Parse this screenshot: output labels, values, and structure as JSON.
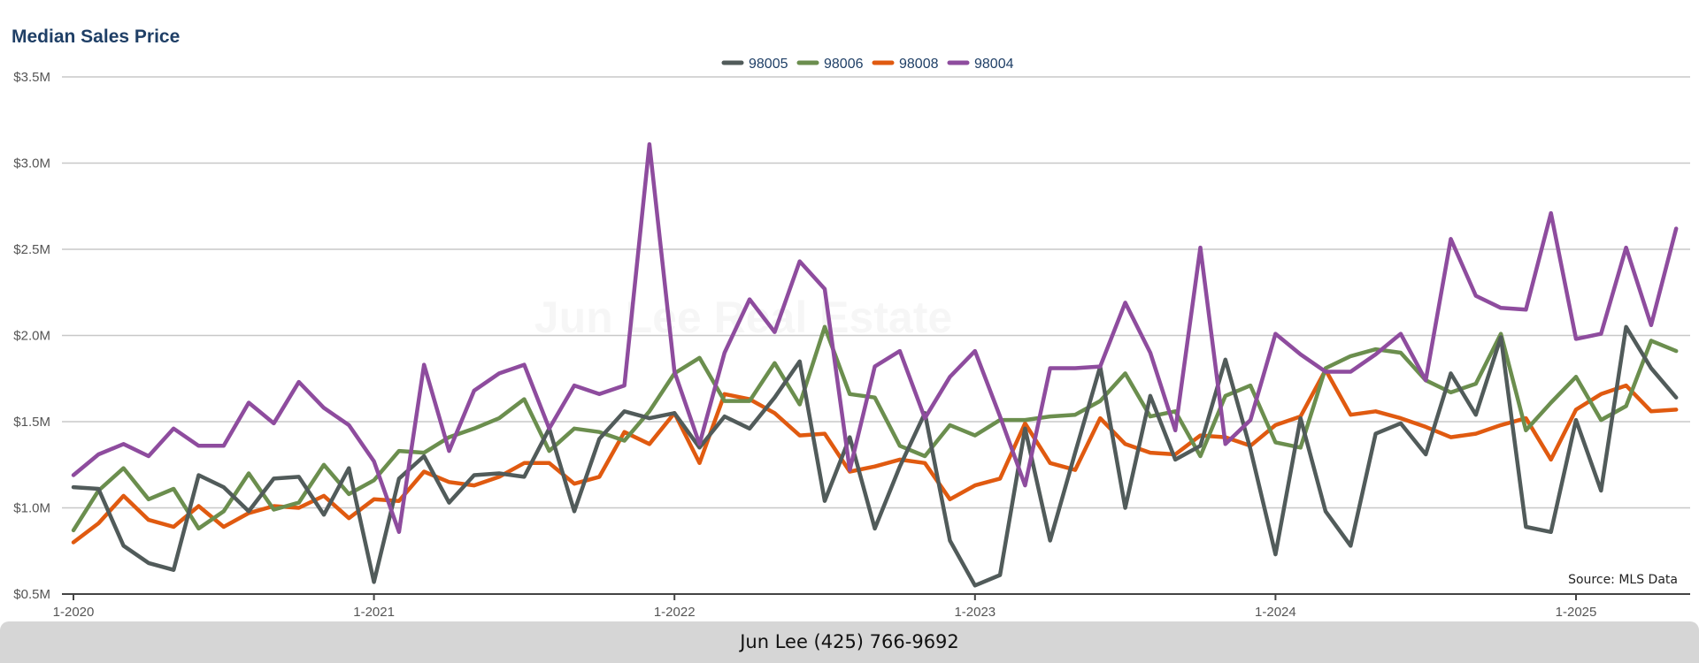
{
  "footer": {
    "contact": "Jun Lee (425) 766-9692"
  },
  "watermark": "Jun Lee Real Estate",
  "colors": {
    "background": "#ffffff",
    "grid": "#c8c8c8",
    "axis": "#555555",
    "title": "#1f3f66",
    "footer_bg": "#d6d6d6"
  },
  "chart_data": {
    "type": "line",
    "title": "Median Sales Price",
    "xlabel": "",
    "ylabel": "",
    "source": "Source: MLS Data",
    "legend_position": "top-center",
    "grid": true,
    "ylim": [
      0.5,
      3.5
    ],
    "y_ticks": [
      0.5,
      1.0,
      1.5,
      2.0,
      2.5,
      3.0,
      3.5
    ],
    "y_tick_labels": [
      "$0.5M",
      "$1.0M",
      "$1.5M",
      "$2.0M",
      "$2.5M",
      "$3.0M",
      "$3.5M"
    ],
    "x_ticks": [
      "1-2020",
      "1-2021",
      "1-2022",
      "1-2023",
      "1-2024",
      "1-2025"
    ],
    "x_start": "1-2020",
    "x_end": "5-2025",
    "series": [
      {
        "name": "98005",
        "color": "#515b5a",
        "values": [
          1.12,
          1.11,
          0.78,
          0.68,
          0.64,
          1.19,
          1.12,
          0.98,
          1.17,
          1.18,
          0.96,
          1.23,
          0.57,
          1.17,
          1.3,
          1.03,
          1.19,
          1.2,
          1.18,
          1.46,
          0.98,
          1.4,
          1.56,
          1.52,
          1.55,
          1.35,
          1.53,
          1.46,
          1.64,
          1.85,
          1.04,
          1.41,
          0.88,
          1.24,
          1.55,
          0.81,
          0.55,
          0.61,
          1.46,
          0.81,
          1.32,
          1.82,
          1.0,
          1.65,
          1.28,
          1.36,
          1.86,
          1.34,
          0.73,
          1.52,
          0.98,
          0.78,
          1.43,
          1.49,
          1.31,
          1.78,
          1.54,
          1.99,
          0.89,
          0.86,
          1.51,
          1.1,
          2.05,
          1.81,
          1.64
        ]
      },
      {
        "name": "98006",
        "color": "#6b8e4e",
        "values": [
          0.87,
          1.1,
          1.23,
          1.05,
          1.11,
          0.88,
          0.98,
          1.2,
          0.99,
          1.03,
          1.25,
          1.08,
          1.16,
          1.33,
          1.32,
          1.41,
          1.46,
          1.52,
          1.63,
          1.33,
          1.46,
          1.44,
          1.39,
          1.56,
          1.78,
          1.87,
          1.62,
          1.62,
          1.84,
          1.6,
          2.05,
          1.66,
          1.64,
          1.36,
          1.3,
          1.48,
          1.42,
          1.51,
          1.51,
          1.53,
          1.54,
          1.62,
          1.78,
          1.53,
          1.56,
          1.3,
          1.65,
          1.71,
          1.38,
          1.35,
          1.81,
          1.88,
          1.92,
          1.9,
          1.74,
          1.67,
          1.72,
          2.01,
          1.45,
          1.61,
          1.76,
          1.51,
          1.59,
          1.97,
          1.91
        ]
      },
      {
        "name": "98008",
        "color": "#e05a10",
        "values": [
          0.8,
          0.91,
          1.07,
          0.93,
          0.89,
          1.01,
          0.89,
          0.97,
          1.01,
          1.0,
          1.07,
          0.94,
          1.05,
          1.04,
          1.21,
          1.15,
          1.13,
          1.18,
          1.26,
          1.26,
          1.14,
          1.18,
          1.44,
          1.37,
          1.55,
          1.26,
          1.66,
          1.63,
          1.55,
          1.42,
          1.43,
          1.21,
          1.24,
          1.28,
          1.26,
          1.05,
          1.13,
          1.17,
          1.49,
          1.26,
          1.22,
          1.52,
          1.37,
          1.32,
          1.31,
          1.42,
          1.41,
          1.36,
          1.48,
          1.53,
          1.8,
          1.54,
          1.56,
          1.52,
          1.47,
          1.41,
          1.43,
          1.48,
          1.52,
          1.28,
          1.57,
          1.66,
          1.71,
          1.56,
          1.57
        ]
      },
      {
        "name": "98004",
        "color": "#8e4c9e",
        "values": [
          1.19,
          1.31,
          1.37,
          1.3,
          1.46,
          1.36,
          1.36,
          1.61,
          1.49,
          1.73,
          1.58,
          1.48,
          1.27,
          0.86,
          1.83,
          1.33,
          1.68,
          1.78,
          1.83,
          1.46,
          1.71,
          1.66,
          1.71,
          3.11,
          1.79,
          1.37,
          1.9,
          2.21,
          2.02,
          2.43,
          2.27,
          1.22,
          1.82,
          1.91,
          1.52,
          1.76,
          1.91,
          1.53,
          1.13,
          1.81,
          1.81,
          1.82,
          2.19,
          1.9,
          1.45,
          2.51,
          1.37,
          1.51,
          2.01,
          1.89,
          1.79,
          1.79,
          1.89,
          2.01,
          1.74,
          2.56,
          2.23,
          2.16,
          2.15,
          2.71,
          1.98,
          2.01,
          2.51,
          2.06,
          2.62
        ]
      }
    ]
  }
}
